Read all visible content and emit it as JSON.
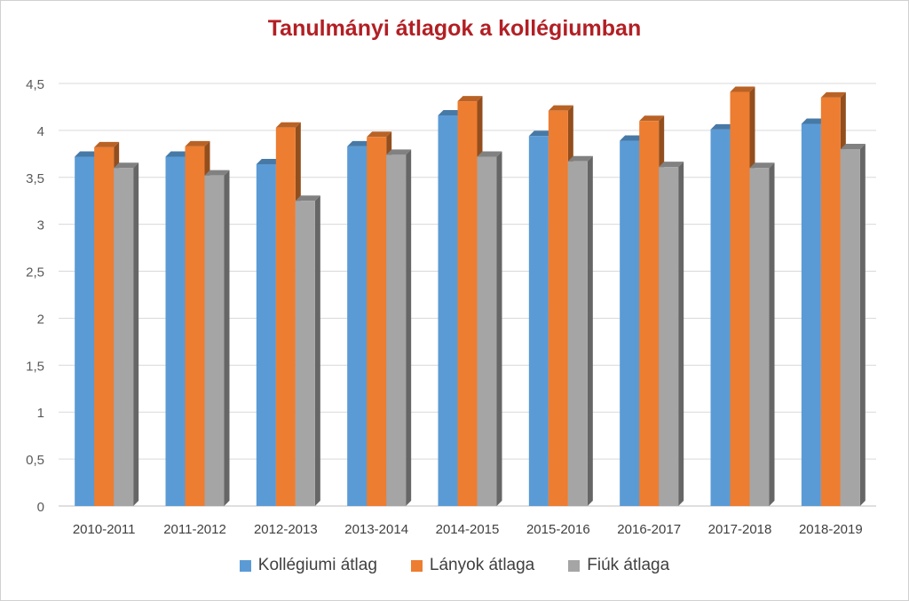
{
  "chart_data": {
    "type": "bar",
    "title": "Tanulmányi átlagok a kollégiumban",
    "xlabel": "",
    "ylabel": "",
    "categories": [
      "2010-2011",
      "2011-2012",
      "2012-2013",
      "2013-2014",
      "2014-2015",
      "2015-2016",
      "2016-2017",
      "2017-2018",
      "2018-2019"
    ],
    "series": [
      {
        "name": "Kollégiumi átlag",
        "color": "#5b9bd5",
        "values": [
          3.72,
          3.72,
          3.64,
          3.83,
          4.16,
          3.94,
          3.89,
          4.01,
          4.07
        ]
      },
      {
        "name": "Lányok átlaga",
        "color": "#ed7d31",
        "values": [
          3.82,
          3.83,
          4.03,
          3.93,
          4.31,
          4.21,
          4.1,
          4.41,
          4.35
        ]
      },
      {
        "name": "Fiúk átlaga",
        "color": "#a5a5a5",
        "values": [
          3.6,
          3.52,
          3.25,
          3.74,
          3.72,
          3.67,
          3.61,
          3.6,
          3.8
        ]
      }
    ],
    "yticks": [
      "0",
      "0,5",
      "1",
      "1,5",
      "2",
      "2,5",
      "3",
      "3,5",
      "4",
      "4,5"
    ],
    "ylim": [
      0,
      4.5
    ],
    "grid": true,
    "legend_position": "bottom"
  }
}
